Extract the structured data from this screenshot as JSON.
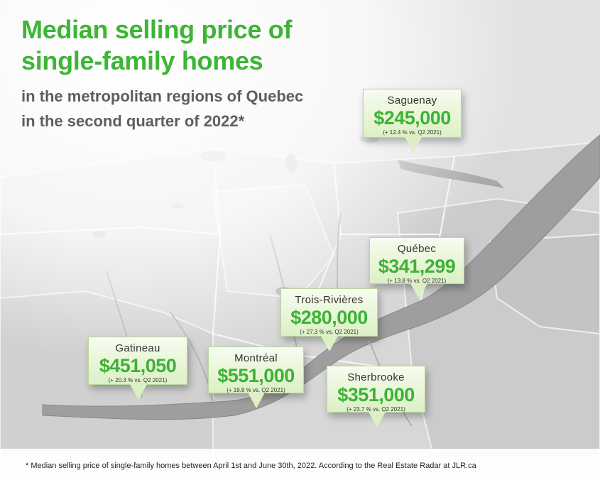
{
  "title": {
    "main_line1": "Median selling price of",
    "main_line2": "single-family homes",
    "subtitle": "in the metropolitan regions of Quebec in the second quarter of 2022*"
  },
  "regions": [
    {
      "city": "Saguenay",
      "price": "$245,000",
      "change": "(+ 12.4 % vs. Q2 2021)"
    },
    {
      "city": "Québec",
      "price": "$341,299",
      "change": "(+ 13.8 % vs. Q2 2021)"
    },
    {
      "city": "Trois-Rivières",
      "price": "$280,000",
      "change": "(+ 27.3 % vs. Q2 2021)"
    },
    {
      "city": "Gatineau",
      "price": "$451,050",
      "change": "(+ 20.3 % vs. Q2 2021)"
    },
    {
      "city": "Montréal",
      "price": "$551,000",
      "change": "(+ 19.8 % vs. Q2 2021)"
    },
    {
      "city": "Sherbrooke",
      "price": "$351,000",
      "change": "(+ 23.7 % vs. Q2 2021)"
    }
  ],
  "footnote": "* Median selling price of single-family homes between April 1st and June 30th, 2022. According to the Real Estate Radar at JLR.ca",
  "colors": {
    "accent_green": "#3db535",
    "subtitle_gray": "#5e5e5e",
    "callout_fill": "#dcf0c4",
    "land": "#dcdcdc",
    "water": "#bdbdbd"
  }
}
